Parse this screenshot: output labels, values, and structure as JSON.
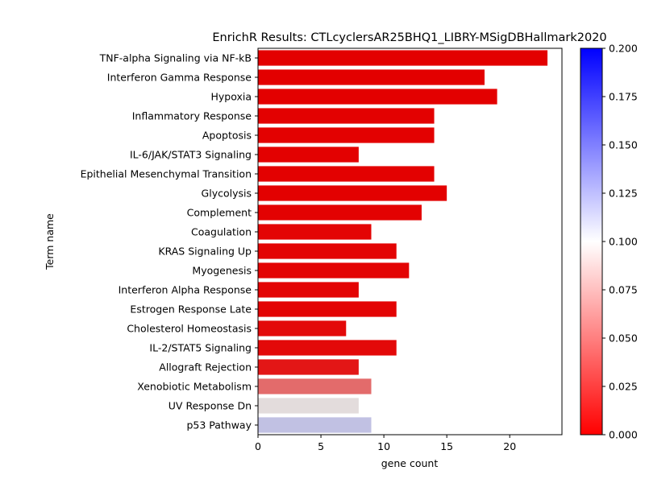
{
  "chart_data": {
    "type": "bar",
    "orientation": "horizontal",
    "title": "EnrichR Results: CTLcyclersAR25BHQ1_LIBRY-MSigDBHallmark2020",
    "xlabel": "gene count",
    "ylabel": "Term name",
    "xlim": [
      0,
      24.15
    ],
    "xticks": [
      0,
      5,
      10,
      15,
      20
    ],
    "categories": [
      "TNF-alpha Signaling via NF-kB",
      "Interferon Gamma Response",
      "Hypoxia",
      "Inflammatory Response",
      "Apoptosis",
      "IL-6/JAK/STAT3 Signaling",
      "Epithelial Mesenchymal Transition",
      "Glycolysis",
      "Complement",
      "Coagulation",
      "KRAS Signaling Up",
      "Myogenesis",
      "Interferon Alpha Response",
      "Estrogen Response Late",
      "Cholesterol Homeostasis",
      "IL-2/STAT5 Signaling",
      "Allograft Rejection",
      "Xenobiotic Metabolism",
      "UV Response Dn",
      "p53 Pathway"
    ],
    "values": [
      23,
      18,
      19,
      14,
      14,
      8,
      14,
      15,
      13,
      9,
      11,
      12,
      8,
      11,
      7,
      11,
      8,
      9,
      8,
      9
    ],
    "color_values": [
      0.0001,
      0.0001,
      0.0001,
      0.0003,
      0.0003,
      0.0005,
      0.0005,
      0.0005,
      0.0008,
      0.0015,
      0.0015,
      0.0015,
      0.002,
      0.002,
      0.004,
      0.004,
      0.01,
      0.047,
      0.097,
      0.115
    ],
    "colorbar": {
      "range": [
        0.0,
        0.2
      ],
      "ticks": [
        "0.000",
        "0.025",
        "0.050",
        "0.075",
        "0.100",
        "0.125",
        "0.150",
        "0.175",
        "0.200"
      ],
      "colors": [
        "#ff0000",
        "#ffffff",
        "#0000ff"
      ]
    },
    "grid": false,
    "legend": "none"
  }
}
